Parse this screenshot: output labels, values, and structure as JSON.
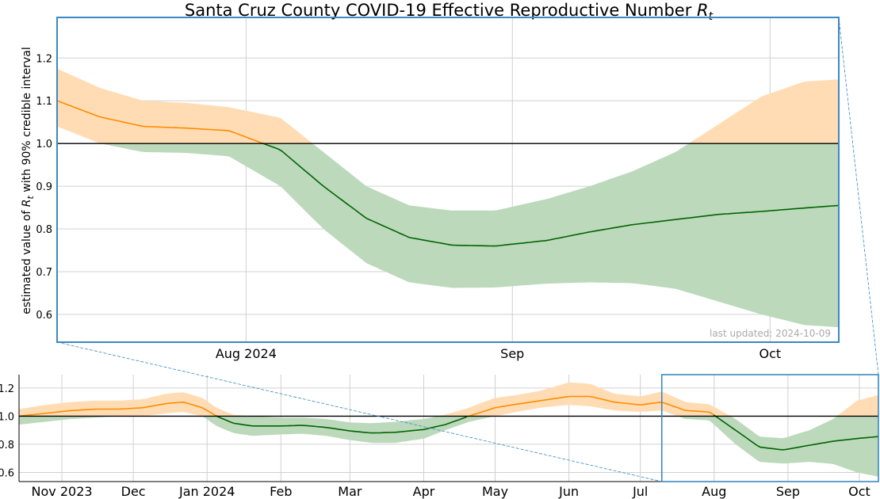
{
  "colors": {
    "above_one": "#ff8c00",
    "above_one_band": "#ffdcb4",
    "below_one": "#006400",
    "below_one_band": "#bcd9bc",
    "frame": "#3b88c3",
    "threshold": "#000000",
    "grid": "#d0d0d0"
  },
  "chart_data": [
    {
      "id": "zoom",
      "type": "area",
      "title_text": "Santa Cruz County COVID-19 Effective Reproductive Number ",
      "title_var": "R",
      "title_sub": "t",
      "ylabel_pre": "estimated value of ",
      "ylabel_var": "R",
      "ylabel_sub": "t",
      "ylabel_post": " with 90% credible interval",
      "note": "last updated: 2024-10-09",
      "xlim": [
        "2024-07-10",
        "2024-10-09"
      ],
      "ylim": [
        0.535,
        1.295
      ],
      "x_ticks": [
        {
          "date": "2024-08-01",
          "label": "Aug 2024"
        },
        {
          "date": "2024-09-01",
          "label": "Sep"
        },
        {
          "date": "2024-10-01",
          "label": "Oct"
        }
      ],
      "y_ticks": [
        0.6,
        0.7,
        0.8,
        0.9,
        1.0,
        1.1,
        1.2
      ],
      "threshold": 1.0,
      "series": {
        "x": [
          "2024-07-10",
          "2024-07-15",
          "2024-07-20",
          "2024-07-25",
          "2024-07-30",
          "2024-08-05",
          "2024-08-10",
          "2024-08-15",
          "2024-08-20",
          "2024-08-25",
          "2024-08-30",
          "2024-09-05",
          "2024-09-10",
          "2024-09-15",
          "2024-09-20",
          "2024-09-25",
          "2024-09-30",
          "2024-10-05",
          "2024-10-09"
        ],
        "mid": [
          1.1,
          1.062,
          1.04,
          1.036,
          1.03,
          0.985,
          0.9,
          0.825,
          0.78,
          0.762,
          0.76,
          0.773,
          0.793,
          0.81,
          0.822,
          0.834,
          0.841,
          0.849,
          0.855
        ],
        "low": [
          1.04,
          1.0,
          0.98,
          0.978,
          0.97,
          0.9,
          0.8,
          0.72,
          0.675,
          0.662,
          0.663,
          0.672,
          0.675,
          0.673,
          0.66,
          0.63,
          0.6,
          0.575,
          0.57
        ],
        "high": [
          1.175,
          1.13,
          1.1,
          1.095,
          1.085,
          1.06,
          0.98,
          0.9,
          0.855,
          0.843,
          0.843,
          0.87,
          0.9,
          0.935,
          0.98,
          1.045,
          1.11,
          1.145,
          1.15
        ]
      }
    },
    {
      "id": "full",
      "type": "area",
      "xlim": [
        "2023-10-14",
        "2024-10-09"
      ],
      "ylim": [
        0.535,
        1.295
      ],
      "x_ticks": [
        {
          "date": "2023-11-01",
          "label": "Nov 2023"
        },
        {
          "date": "2023-12-01",
          "label": "Dec"
        },
        {
          "date": "2024-01-01",
          "label": "Jan 2024"
        },
        {
          "date": "2024-02-01",
          "label": "Feb"
        },
        {
          "date": "2024-03-01",
          "label": "Mar"
        },
        {
          "date": "2024-04-01",
          "label": "Apr"
        },
        {
          "date": "2024-05-01",
          "label": "May"
        },
        {
          "date": "2024-06-01",
          "label": "Jun"
        },
        {
          "date": "2024-07-01",
          "label": "Jul"
        },
        {
          "date": "2024-08-01",
          "label": "Aug"
        },
        {
          "date": "2024-09-01",
          "label": "Sep"
        },
        {
          "date": "2024-10-01",
          "label": "Oct"
        }
      ],
      "y_ticks": [
        0.6,
        0.8,
        1.0,
        1.2
      ],
      "threshold": 1.0,
      "inset_range": [
        "2024-07-10",
        "2024-10-09"
      ],
      "series": {
        "x": [
          "2023-10-14",
          "2023-10-25",
          "2023-11-05",
          "2023-11-15",
          "2023-11-25",
          "2023-12-05",
          "2023-12-15",
          "2023-12-22",
          "2023-12-30",
          "2024-01-05",
          "2024-01-12",
          "2024-01-20",
          "2024-02-01",
          "2024-02-10",
          "2024-02-20",
          "2024-03-01",
          "2024-03-10",
          "2024-03-20",
          "2024-04-01",
          "2024-04-10",
          "2024-04-20",
          "2024-05-01",
          "2024-05-10",
          "2024-05-20",
          "2024-06-01",
          "2024-06-10",
          "2024-06-20",
          "2024-07-01",
          "2024-07-10",
          "2024-07-20",
          "2024-07-30",
          "2024-08-10",
          "2024-08-20",
          "2024-08-30",
          "2024-09-10",
          "2024-09-20",
          "2024-09-30",
          "2024-10-09"
        ],
        "mid": [
          1.0,
          1.02,
          1.04,
          1.05,
          1.05,
          1.06,
          1.09,
          1.1,
          1.06,
          1.0,
          0.95,
          0.93,
          0.93,
          0.935,
          0.92,
          0.895,
          0.88,
          0.885,
          0.905,
          0.94,
          1.0,
          1.06,
          1.085,
          1.11,
          1.14,
          1.14,
          1.1,
          1.08,
          1.1,
          1.04,
          1.03,
          0.9,
          0.78,
          0.76,
          0.793,
          0.822,
          0.841,
          0.855
        ],
        "low": [
          0.94,
          0.96,
          0.98,
          0.99,
          1.0,
          1.0,
          1.02,
          1.03,
          1.0,
          0.93,
          0.88,
          0.86,
          0.87,
          0.875,
          0.86,
          0.83,
          0.81,
          0.81,
          0.84,
          0.9,
          0.96,
          1.0,
          1.03,
          1.06,
          1.08,
          1.07,
          1.04,
          1.03,
          1.04,
          0.98,
          0.97,
          0.8,
          0.675,
          0.663,
          0.675,
          0.66,
          0.6,
          0.57
        ],
        "high": [
          1.05,
          1.08,
          1.1,
          1.11,
          1.11,
          1.12,
          1.16,
          1.17,
          1.13,
          1.06,
          1.01,
          1.0,
          0.99,
          0.99,
          0.98,
          0.955,
          0.95,
          0.96,
          0.98,
          1.01,
          1.06,
          1.13,
          1.15,
          1.18,
          1.24,
          1.23,
          1.16,
          1.14,
          1.175,
          1.1,
          1.085,
          0.98,
          0.855,
          0.843,
          0.9,
          0.98,
          1.11,
          1.15
        ]
      }
    }
  ]
}
